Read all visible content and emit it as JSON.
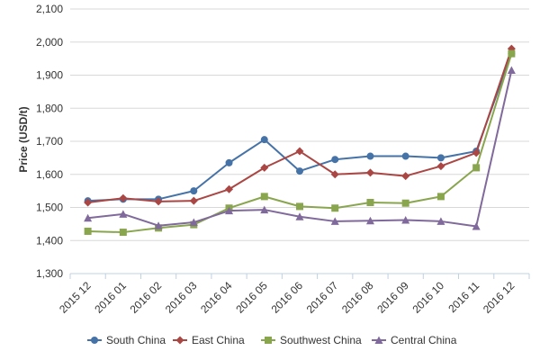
{
  "chart_data": {
    "type": "line",
    "title": "",
    "xlabel": "",
    "ylabel": "Price (USD/t)",
    "ylim": [
      1300,
      2100
    ],
    "yticks": [
      1300,
      1400,
      1500,
      1600,
      1700,
      1800,
      1900,
      2000,
      2100
    ],
    "ytick_labels": [
      "1,300",
      "1,400",
      "1,500",
      "1,600",
      "1,700",
      "1,800",
      "1,900",
      "2,000",
      "2,100"
    ],
    "categories": [
      "2015 12",
      "2016 01",
      "2016 02",
      "2016 03",
      "2016 04",
      "2016 05",
      "2016 06",
      "2016 07",
      "2016 08",
      "2016 09",
      "2016 10",
      "2016 11",
      "2016 12"
    ],
    "grid": "horizontal",
    "legend_position": "bottom",
    "series": [
      {
        "name": "South China",
        "color": "#4572A7",
        "marker": "circle",
        "values": [
          1520,
          1525,
          1525,
          1550,
          1635,
          1705,
          1610,
          1645,
          1655,
          1655,
          1650,
          1670,
          1965
        ]
      },
      {
        "name": "East China",
        "color": "#AA4643",
        "marker": "diamond",
        "values": [
          1515,
          1528,
          1518,
          1520,
          1555,
          1620,
          1670,
          1600,
          1605,
          1595,
          1625,
          1665,
          1980
        ]
      },
      {
        "name": "Southwest China",
        "color": "#89A54E",
        "marker": "square",
        "values": [
          1428,
          1425,
          1438,
          1448,
          1498,
          1533,
          1503,
          1498,
          1515,
          1513,
          1533,
          1620,
          1965
        ]
      },
      {
        "name": "Central China",
        "color": "#80699B",
        "marker": "triangle",
        "values": [
          1468,
          1480,
          1445,
          1455,
          1490,
          1493,
          1472,
          1458,
          1460,
          1462,
          1458,
          1443,
          1915
        ]
      }
    ]
  }
}
